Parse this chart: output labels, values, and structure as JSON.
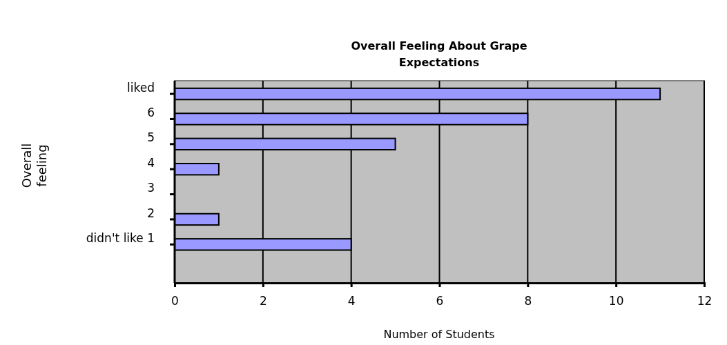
{
  "chart_data": {
    "type": "bar",
    "orientation": "horizontal",
    "title": "Overall Feeling About Grape Expectations",
    "xlabel": "Number of Students",
    "ylabel": "Overall feeling",
    "categories": [
      "liked",
      "6",
      "5",
      "4",
      "3",
      "2",
      "didn't like  1"
    ],
    "values": [
      11,
      8,
      5,
      1,
      0,
      1,
      4
    ],
    "color": "#9999ff",
    "xlim": [
      0,
      12
    ],
    "xticks": [
      0,
      2,
      4,
      6,
      8,
      10,
      12
    ],
    "grid": "x"
  }
}
